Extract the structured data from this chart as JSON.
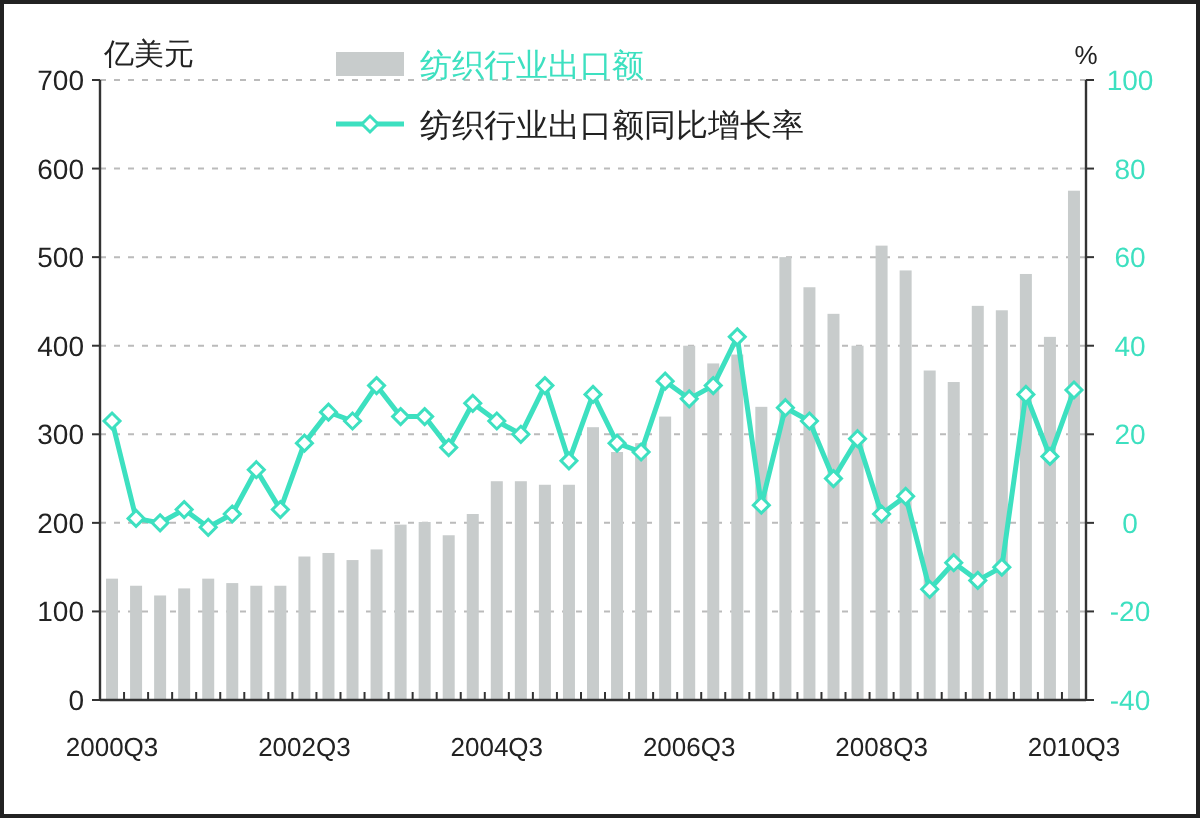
{
  "chart_data": {
    "type": "bar",
    "ylabel": "亿美元",
    "y2label": "%",
    "categories": [
      "2000Q3",
      null,
      null,
      null,
      null,
      null,
      null,
      null,
      "2002Q3",
      null,
      null,
      null,
      null,
      null,
      null,
      null,
      "2004Q3",
      null,
      null,
      null,
      null,
      null,
      null,
      null,
      "2006Q3",
      null,
      null,
      null,
      null,
      null,
      null,
      null,
      "2008Q3",
      null,
      null,
      null,
      null,
      null,
      null,
      null,
      "2010Q3"
    ],
    "series": [
      {
        "name": "纺织行业出口额",
        "color": "#c8cccc",
        "values": [
          137,
          129,
          118,
          126,
          137,
          132,
          129,
          129,
          162,
          166,
          158,
          170,
          198,
          201,
          186,
          210,
          247,
          247,
          243,
          243,
          308,
          280,
          290,
          320,
          400,
          380,
          390,
          331,
          500,
          466,
          436,
          400,
          513,
          485,
          372,
          359,
          445,
          440,
          481,
          410,
          575
        ]
      },
      {
        "name": "纺织行业出口额同比增长率",
        "type": "line",
        "axis": "y2",
        "color": "#3de0c0",
        "values": [
          23,
          1,
          0,
          3,
          -1,
          2,
          12,
          3,
          18,
          25,
          23,
          31,
          24,
          24,
          17,
          27,
          23,
          20,
          31,
          14,
          29,
          18,
          16,
          32,
          28,
          31,
          42,
          4,
          26,
          23,
          10,
          19,
          2,
          6,
          -15,
          -9,
          -13,
          -10,
          29,
          15,
          30
        ]
      }
    ],
    "ylim": [
      0,
      700
    ],
    "yticks": [
      0,
      100,
      200,
      300,
      400,
      500,
      600,
      700
    ],
    "y2lim": [
      -40,
      100
    ],
    "y2ticks": [
      -40,
      -20,
      0,
      20,
      40,
      60,
      80,
      100
    ],
    "grid": "y",
    "legend": "top",
    "marker": "diamond",
    "line_style": "solid"
  }
}
